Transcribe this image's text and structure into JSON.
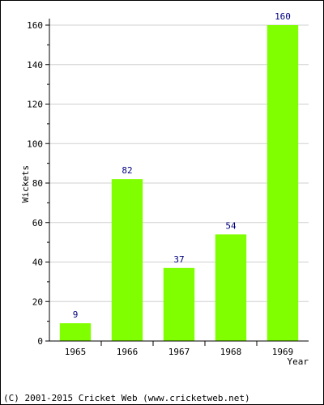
{
  "chart_data": {
    "type": "bar",
    "categories": [
      "1965",
      "1966",
      "1967",
      "1968",
      "1969"
    ],
    "values": [
      9,
      82,
      37,
      54,
      160
    ],
    "data_labels": [
      "9",
      "82",
      "37",
      "54",
      "160"
    ],
    "xlabel": "Year",
    "ylabel": "Wickets",
    "ylim": [
      0,
      160
    ],
    "yticks": [
      "0",
      "20",
      "40",
      "60",
      "80",
      "100",
      "120",
      "140",
      "160"
    ],
    "grid": "horizontal",
    "bar_color": "#80ff00",
    "label_color": "#000080"
  },
  "footer": {
    "copyright": "(C) 2001-2015 Cricket Web (www.cricketweb.net)"
  }
}
